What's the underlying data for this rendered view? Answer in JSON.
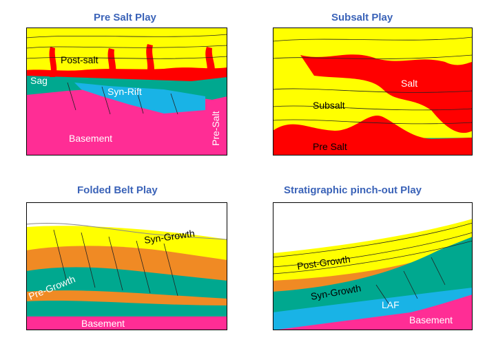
{
  "titles": {
    "pre_salt": "Pre Salt Play",
    "subsalt": "Subsalt Play",
    "folded_belt": "Folded Belt Play",
    "strat_pinchout": "Stratigraphic pinch-out Play"
  },
  "pre_salt_labels": {
    "post_salt": "Post-salt",
    "sag": "Sag",
    "syn_rift": "Syn-Rift",
    "basement": "Basement",
    "pre_salt_vertical": "Pre-Salt"
  },
  "subsalt_labels": {
    "salt": "Salt",
    "subsalt": "Subsalt",
    "pre_salt": "Pre Salt"
  },
  "folded_labels": {
    "syn_growth": "Syn-Growth",
    "pre_growth": "Pre-Growth",
    "basement": "Basement"
  },
  "strat_labels": {
    "post_growth": "Post-Growth",
    "syn_growth": "Syn-Growth",
    "laf": "LAF",
    "basement": "Basement"
  },
  "colors": {
    "yellow": "#ffff00",
    "red": "#ff0000",
    "teal": "#00a88f",
    "cyan": "#19b3e6",
    "magenta": "#ff2d95",
    "orange": "#f08a24",
    "title_blue": "#3b63b8"
  }
}
